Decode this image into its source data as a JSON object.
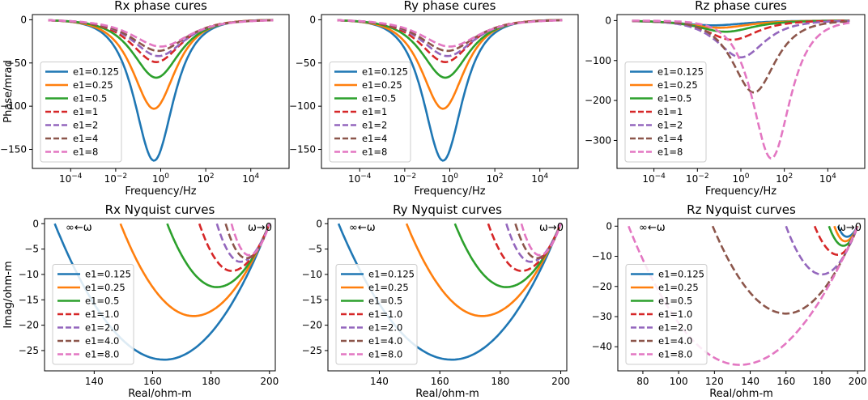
{
  "chart_data": [
    {
      "type": "line",
      "scale": "logx",
      "title": "Rx phase cures",
      "xlabel": "Frequency/Hz",
      "ylabel": "Phase/mrad",
      "xlim": [
        -5.7,
        5.7
      ],
      "ylim": [
        -172,
        6
      ],
      "xticks": [
        {
          "v": -4,
          "base": "10",
          "exp": "−4"
        },
        {
          "v": -2,
          "base": "10",
          "exp": "−2"
        },
        {
          "v": 0,
          "base": "10",
          "exp": "0"
        },
        {
          "v": 2,
          "base": "10",
          "exp": "2"
        },
        {
          "v": 4,
          "base": "10",
          "exp": "4"
        }
      ],
      "yticks": [
        {
          "v": 0,
          "t": "0"
        },
        {
          "v": -50,
          "t": "−50"
        },
        {
          "v": -100,
          "t": "−100"
        },
        {
          "v": -150,
          "t": "−150"
        }
      ],
      "legend": {
        "position": "left"
      },
      "series": [
        {
          "name": "e1=0.125",
          "color": "#1f77b4",
          "dash": "solid",
          "logf_center": -0.3,
          "min": -163,
          "width": 0.75
        },
        {
          "name": "e1=0.25",
          "color": "#ff7f0e",
          "dash": "solid",
          "logf_center": -0.3,
          "min": -103,
          "width": 0.82
        },
        {
          "name": "e1=0.5",
          "color": "#2ca02c",
          "dash": "solid",
          "logf_center": -0.2,
          "min": -67,
          "width": 0.9
        },
        {
          "name": "e1=1",
          "color": "#d62728",
          "dash": "dashed",
          "logf_center": -0.2,
          "min": -49,
          "width": 0.95
        },
        {
          "name": "e1=2",
          "color": "#9467bd",
          "dash": "dashed",
          "logf_center": -0.1,
          "min": -42,
          "width": 1.0
        },
        {
          "name": "e1=4",
          "color": "#8c564b",
          "dash": "dashed",
          "logf_center": -0.1,
          "min": -36,
          "width": 1.05
        },
        {
          "name": "e1=8",
          "color": "#e377c2",
          "dash": "dashed",
          "logf_center": 0.0,
          "min": -31,
          "width": 1.1
        }
      ]
    },
    {
      "type": "line",
      "scale": "logx",
      "title": "Ry phase cures",
      "xlabel": "Frequency/Hz",
      "ylabel": "",
      "xlim": [
        -5.7,
        5.7
      ],
      "ylim": [
        -172,
        6
      ],
      "xticks": [
        {
          "v": -4,
          "base": "10",
          "exp": "−4"
        },
        {
          "v": -2,
          "base": "10",
          "exp": "−2"
        },
        {
          "v": 0,
          "base": "10",
          "exp": "0"
        },
        {
          "v": 2,
          "base": "10",
          "exp": "2"
        },
        {
          "v": 4,
          "base": "10",
          "exp": "4"
        }
      ],
      "yticks": [
        {
          "v": 0,
          "t": "0"
        },
        {
          "v": -50,
          "t": "−50"
        },
        {
          "v": -100,
          "t": "−100"
        },
        {
          "v": -150,
          "t": "−150"
        }
      ],
      "legend": {
        "position": "left"
      },
      "series": [
        {
          "name": "e1=0.125",
          "color": "#1f77b4",
          "dash": "solid",
          "logf_center": -0.3,
          "min": -163,
          "width": 0.75
        },
        {
          "name": "e1=0.25",
          "color": "#ff7f0e",
          "dash": "solid",
          "logf_center": -0.3,
          "min": -103,
          "width": 0.82
        },
        {
          "name": "e1=0.5",
          "color": "#2ca02c",
          "dash": "solid",
          "logf_center": -0.2,
          "min": -67,
          "width": 0.9
        },
        {
          "name": "e1=1",
          "color": "#d62728",
          "dash": "dashed",
          "logf_center": -0.2,
          "min": -49,
          "width": 0.95
        },
        {
          "name": "e1=2",
          "color": "#9467bd",
          "dash": "dashed",
          "logf_center": -0.1,
          "min": -42,
          "width": 1.0
        },
        {
          "name": "e1=4",
          "color": "#8c564b",
          "dash": "dashed",
          "logf_center": -0.1,
          "min": -36,
          "width": 1.05
        },
        {
          "name": "e1=8",
          "color": "#e377c2",
          "dash": "dashed",
          "logf_center": 0.0,
          "min": -31,
          "width": 1.1
        }
      ]
    },
    {
      "type": "line",
      "scale": "logx",
      "title": "Rz phase cures",
      "xlabel": "Frequency/Hz",
      "ylabel": "",
      "xlim": [
        -5.7,
        5.7
      ],
      "ylim": [
        -370,
        15
      ],
      "xticks": [
        {
          "v": -4,
          "base": "10",
          "exp": "−4"
        },
        {
          "v": -2,
          "base": "10",
          "exp": "−2"
        },
        {
          "v": 0,
          "base": "10",
          "exp": "0"
        },
        {
          "v": 2,
          "base": "10",
          "exp": "2"
        },
        {
          "v": 4,
          "base": "10",
          "exp": "4"
        }
      ],
      "yticks": [
        {
          "v": 0,
          "t": "0"
        },
        {
          "v": -100,
          "t": "−100"
        },
        {
          "v": -200,
          "t": "−200"
        },
        {
          "v": -300,
          "t": "−300"
        }
      ],
      "legend": {
        "position": "left"
      },
      "series": [
        {
          "name": "e1=0.125",
          "color": "#1f77b4",
          "dash": "solid",
          "logf_center": -1.3,
          "min": -12,
          "width": 1.3
        },
        {
          "name": "e1=0.25",
          "color": "#ff7f0e",
          "dash": "solid",
          "logf_center": -1.0,
          "min": -18,
          "width": 1.2
        },
        {
          "name": "e1=0.5",
          "color": "#2ca02c",
          "dash": "solid",
          "logf_center": -0.7,
          "min": -28,
          "width": 1.1
        },
        {
          "name": "e1=1",
          "color": "#d62728",
          "dash": "dashed",
          "logf_center": -0.4,
          "min": -48,
          "width": 1.0
        },
        {
          "name": "e1=2",
          "color": "#9467bd",
          "dash": "dashed",
          "logf_center": 0.0,
          "min": -92,
          "width": 0.95
        },
        {
          "name": "e1=4",
          "color": "#8c564b",
          "dash": "dashed",
          "logf_center": 0.6,
          "min": -180,
          "width": 0.85
        },
        {
          "name": "e1=8",
          "color": "#e377c2",
          "dash": "dashed",
          "logf_center": 1.4,
          "min": -345,
          "width": 0.75
        }
      ]
    },
    {
      "type": "line",
      "scale": "nyquist",
      "title": "Rx  Nyquist curves",
      "xlabel": "Real/ohm-m",
      "ylabel": "Imag/ohm-m",
      "xlim": [
        123,
        202
      ],
      "ylim": [
        -29,
        1
      ],
      "xticks": [
        {
          "v": 140,
          "t": "140"
        },
        {
          "v": 160,
          "t": "160"
        },
        {
          "v": 180,
          "t": "180"
        },
        {
          "v": 200,
          "t": "200"
        }
      ],
      "yticks": [
        {
          "v": 0,
          "t": "0"
        },
        {
          "v": -5,
          "t": "−5"
        },
        {
          "v": -10,
          "t": "−10"
        },
        {
          "v": -15,
          "t": "−15"
        },
        {
          "v": -20,
          "t": "−20"
        },
        {
          "v": -25,
          "t": "−25"
        }
      ],
      "annotations": {
        "left": "∞←ω",
        "right": "ω→0"
      },
      "legend": {
        "position": "left"
      },
      "series": [
        {
          "name": "e1=0.125",
          "color": "#1f77b4",
          "dash": "solid",
          "r_start": 126.5,
          "r_min": 164,
          "i_min": -26.8
        },
        {
          "name": "e1=0.25",
          "color": "#ff7f0e",
          "dash": "solid",
          "r_start": 149,
          "r_min": 174,
          "i_min": -18.2
        },
        {
          "name": "e1=0.5",
          "color": "#2ca02c",
          "dash": "solid",
          "r_start": 165,
          "r_min": 182,
          "i_min": -12.5
        },
        {
          "name": "e1=1.0",
          "color": "#d62728",
          "dash": "dashed",
          "r_start": 176,
          "r_min": 187,
          "i_min": -9.3
        },
        {
          "name": "e1=2.0",
          "color": "#9467bd",
          "dash": "dashed",
          "r_start": 182,
          "r_min": 190,
          "i_min": -7.5
        },
        {
          "name": "e1=4.0",
          "color": "#8c564b",
          "dash": "dashed",
          "r_start": 185,
          "r_min": 192,
          "i_min": -6.8
        },
        {
          "name": "e1=8.0",
          "color": "#e377c2",
          "dash": "dashed",
          "r_start": 187,
          "r_min": 193,
          "i_min": -6.2
        }
      ]
    },
    {
      "type": "line",
      "scale": "nyquist",
      "title": "Ry  Nyquist curves",
      "xlabel": "Real/ohm-m",
      "ylabel": "",
      "xlim": [
        123,
        202
      ],
      "ylim": [
        -29,
        1
      ],
      "xticks": [
        {
          "v": 140,
          "t": "140"
        },
        {
          "v": 160,
          "t": "160"
        },
        {
          "v": 180,
          "t": "180"
        },
        {
          "v": 200,
          "t": "200"
        }
      ],
      "yticks": [
        {
          "v": 0,
          "t": "0"
        },
        {
          "v": -5,
          "t": "−5"
        },
        {
          "v": -10,
          "t": "−10"
        },
        {
          "v": -15,
          "t": "−15"
        },
        {
          "v": -20,
          "t": "−20"
        },
        {
          "v": -25,
          "t": "−25"
        }
      ],
      "annotations": {
        "left": "∞←ω",
        "right": "ω→0"
      },
      "legend": {
        "position": "left"
      },
      "series": [
        {
          "name": "e1=0.125",
          "color": "#1f77b4",
          "dash": "solid",
          "r_start": 126.5,
          "r_min": 164,
          "i_min": -26.8
        },
        {
          "name": "e1=0.25",
          "color": "#ff7f0e",
          "dash": "solid",
          "r_start": 149,
          "r_min": 174,
          "i_min": -18.2
        },
        {
          "name": "e1=0.5",
          "color": "#2ca02c",
          "dash": "solid",
          "r_start": 165,
          "r_min": 182,
          "i_min": -12.5
        },
        {
          "name": "e1=1.0",
          "color": "#d62728",
          "dash": "dashed",
          "r_start": 176,
          "r_min": 187,
          "i_min": -9.3
        },
        {
          "name": "e1=2.0",
          "color": "#9467bd",
          "dash": "dashed",
          "r_start": 182,
          "r_min": 190,
          "i_min": -7.5
        },
        {
          "name": "e1=4.0",
          "color": "#8c564b",
          "dash": "dashed",
          "r_start": 185,
          "r_min": 192,
          "i_min": -6.8
        },
        {
          "name": "e1=8.0",
          "color": "#e377c2",
          "dash": "dashed",
          "r_start": 187,
          "r_min": 193,
          "i_min": -6.2
        }
      ]
    },
    {
      "type": "line",
      "scale": "nyquist",
      "title": "Rz  Nyquist curves",
      "xlabel": "Real/ohm-m",
      "ylabel": "",
      "xlim": [
        66,
        204
      ],
      "ylim": [
        -48,
        2.5
      ],
      "xticks": [
        {
          "v": 80,
          "t": "80"
        },
        {
          "v": 100,
          "t": "100"
        },
        {
          "v": 120,
          "t": "120"
        },
        {
          "v": 140,
          "t": "140"
        },
        {
          "v": 160,
          "t": "160"
        },
        {
          "v": 180,
          "t": "180"
        },
        {
          "v": 200,
          "t": "200"
        }
      ],
      "yticks": [
        {
          "v": 0,
          "t": "0"
        },
        {
          "v": -10,
          "t": "−10"
        },
        {
          "v": -20,
          "t": "−20"
        },
        {
          "v": -30,
          "t": "−30"
        },
        {
          "v": -40,
          "t": "−40"
        }
      ],
      "annotations": {
        "left": "∞←ω",
        "right": "ω→0"
      },
      "legend": {
        "position": "left"
      },
      "series": [
        {
          "name": "e1=0.125",
          "color": "#1f77b4",
          "dash": "solid",
          "r_start": 189,
          "r_min": 194,
          "i_min": -3.5
        },
        {
          "name": "e1=0.25",
          "color": "#ff7f0e",
          "dash": "solid",
          "r_start": 187,
          "r_min": 193,
          "i_min": -5
        },
        {
          "name": "e1=0.5",
          "color": "#2ca02c",
          "dash": "solid",
          "r_start": 184,
          "r_min": 192,
          "i_min": -6.5
        },
        {
          "name": "e1=1.0",
          "color": "#d62728",
          "dash": "dashed",
          "r_start": 176,
          "r_min": 189,
          "i_min": -9.5
        },
        {
          "name": "e1=2.0",
          "color": "#9467bd",
          "dash": "dashed",
          "r_start": 160,
          "r_min": 180,
          "i_min": -16
        },
        {
          "name": "e1=4.0",
          "color": "#8c564b",
          "dash": "dashed",
          "r_start": 119,
          "r_min": 160,
          "i_min": -29
        },
        {
          "name": "e1=8.0",
          "color": "#e377c2",
          "dash": "dashed",
          "r_start": 72,
          "r_min": 134,
          "i_min": -46
        }
      ]
    }
  ]
}
